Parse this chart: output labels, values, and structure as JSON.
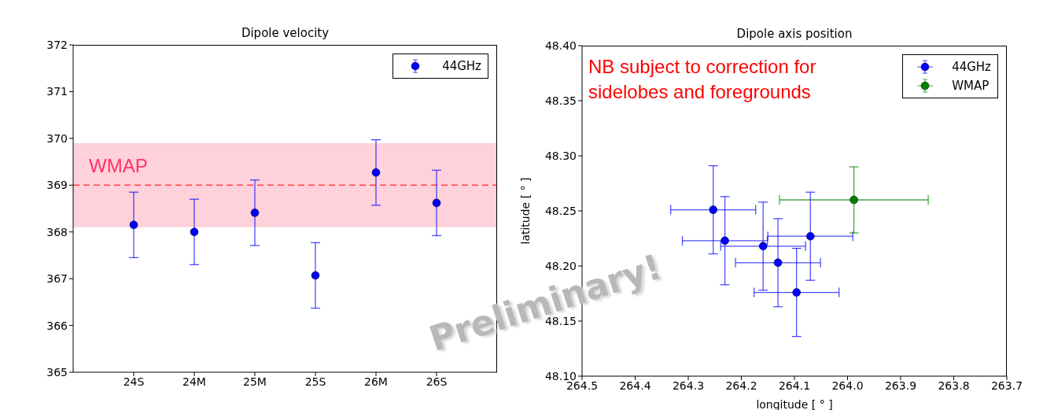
{
  "chart_data": [
    {
      "type": "scatter",
      "title": "Dipole velocity",
      "categories": [
        "24S",
        "24M",
        "25M",
        "25S",
        "26M",
        "26S"
      ],
      "series": [
        {
          "name": "44GHz",
          "color": "#0000ff",
          "values": [
            368.15,
            368.0,
            368.41,
            367.07,
            369.27,
            368.62
          ],
          "errors": [
            0.7,
            0.7,
            0.7,
            0.7,
            0.7,
            0.7
          ]
        }
      ],
      "ylim": [
        365,
        372
      ],
      "yticks": [
        365,
        366,
        367,
        368,
        369,
        370,
        371,
        372
      ],
      "bands": [
        {
          "axis": "y",
          "from": 368.1,
          "to": 369.9,
          "label": "WMAP",
          "color": "#ffd1da"
        }
      ],
      "ref_lines": [
        {
          "axis": "y",
          "value": 369,
          "color": "#ff4444",
          "line_style": "dashed"
        }
      ],
      "legend": "top right",
      "marker": "circle"
    },
    {
      "type": "scatter",
      "title": "Dipole axis position",
      "xlabel": "longitude [ ° ]",
      "ylabel": "latitude [ ° ]",
      "series": [
        {
          "name": "44GHz",
          "color": "#0000ff",
          "x": [
            264.253,
            264.231,
            264.159,
            264.131,
            264.096,
            264.07
          ],
          "values": [
            48.251,
            48.223,
            48.218,
            48.203,
            48.176,
            48.227
          ],
          "errors": [
            0.04,
            0.04,
            0.04,
            0.04,
            0.04,
            0.04
          ],
          "xerrors": [
            0.08,
            0.08,
            0.08,
            0.08,
            0.08,
            0.08
          ]
        },
        {
          "name": "WMAP",
          "color": "#007f00",
          "x": [
            263.988
          ],
          "values": [
            48.26
          ],
          "errors": [
            0.03
          ],
          "xerrors": [
            0.14
          ]
        }
      ],
      "xlim": [
        264.5,
        263.7
      ],
      "xticks": [
        {
          "value": 264.5,
          "label": "264.5"
        },
        {
          "value": 264.4,
          "label": "264.4"
        },
        {
          "value": 264.3,
          "label": "264.3"
        },
        {
          "value": 264.2,
          "label": "264.2"
        },
        {
          "value": 264.1,
          "label": "264.1"
        },
        {
          "value": 264.0,
          "label": "264.0"
        },
        {
          "value": 263.9,
          "label": "263.9"
        },
        {
          "value": 263.8,
          "label": "263.8"
        },
        {
          "value": 263.7,
          "label": "263.7"
        }
      ],
      "ylim": [
        48.1,
        48.4
      ],
      "yticks": [
        {
          "value": 48.1,
          "label": "48.10"
        },
        {
          "value": 48.15,
          "label": "48.15"
        },
        {
          "value": 48.2,
          "label": "48.20"
        },
        {
          "value": 48.25,
          "label": "48.25"
        },
        {
          "value": 48.3,
          "label": "48.30"
        },
        {
          "value": 48.35,
          "label": "48.35"
        },
        {
          "value": 48.4,
          "label": "48.40"
        }
      ],
      "annotations": [
        "NB subject to correction for sidelobes and foregrounds",
        "Preliminary!"
      ],
      "legend": "top right",
      "marker": "circle"
    }
  ]
}
